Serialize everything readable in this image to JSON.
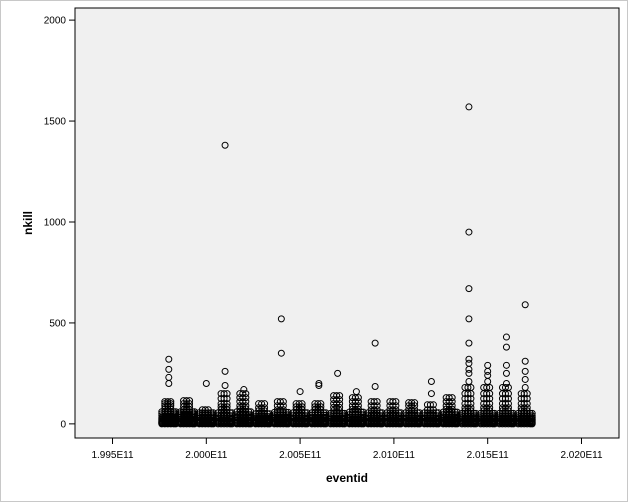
{
  "chart_data": {
    "type": "scatter",
    "title": "",
    "xlabel": "eventid",
    "ylabel": "nkill",
    "xlim": [
      199300000000.0,
      202200000000.0
    ],
    "ylim": [
      -70,
      2060
    ],
    "x_ticks": [
      199500000000.0,
      200000000000.0,
      200500000000.0,
      201000000000.0,
      201500000000.0,
      202000000000.0
    ],
    "x_tick_labels": [
      "1.995E11",
      "2.000E11",
      "2.005E11",
      "2.010E11",
      "2.015E11",
      "2.020E11"
    ],
    "y_ticks": [
      0,
      500,
      1000,
      1500,
      2000
    ],
    "y_tick_labels": [
      "0",
      "500",
      "1000",
      "1500",
      "2000"
    ],
    "grid": false,
    "plot_background": "#f0f0f0",
    "marker": "open-circle",
    "marker_color": "#000000",
    "clusters": [
      {
        "x": 199800000000.0,
        "low_values": [
          0,
          3,
          6,
          10,
          15,
          20,
          25,
          30,
          40,
          50,
          60,
          75,
          90,
          100,
          110
        ],
        "outliers": [
          200,
          230,
          270,
          320
        ]
      },
      {
        "x": 199900000000.0,
        "low_values": [
          0,
          4,
          8,
          12,
          18,
          24,
          32,
          40,
          50,
          60,
          70,
          85,
          100,
          115
        ],
        "outliers": []
      },
      {
        "x": 200000000000.0,
        "low_values": [
          0,
          3,
          6,
          10,
          15,
          20,
          28,
          35,
          45,
          55,
          70
        ],
        "outliers": [
          200
        ]
      },
      {
        "x": 200100000000.0,
        "low_values": [
          0,
          5,
          10,
          15,
          22,
          30,
          40,
          55,
          70,
          85,
          100,
          125,
          150
        ],
        "outliers": [
          190,
          260,
          1380
        ]
      },
      {
        "x": 200200000000.0,
        "low_values": [
          0,
          4,
          8,
          14,
          20,
          28,
          36,
          45,
          60,
          75,
          90,
          110,
          130,
          150
        ],
        "outliers": [
          170
        ]
      },
      {
        "x": 200300000000.0,
        "low_values": [
          0,
          3,
          6,
          10,
          15,
          20,
          28,
          36,
          50,
          65,
          80,
          100
        ],
        "outliers": []
      },
      {
        "x": 200400000000.0,
        "low_values": [
          0,
          4,
          8,
          13,
          19,
          26,
          35,
          45,
          57,
          70,
          90,
          110
        ],
        "outliers": [
          350,
          520
        ]
      },
      {
        "x": 200500000000.0,
        "low_values": [
          0,
          3,
          6,
          10,
          15,
          22,
          30,
          40,
          55,
          70,
          85,
          100
        ],
        "outliers": [
          160
        ]
      },
      {
        "x": 200600000000.0,
        "low_values": [
          0,
          4,
          8,
          12,
          18,
          25,
          33,
          43,
          55,
          70,
          85,
          100
        ],
        "outliers": [
          190,
          200
        ]
      },
      {
        "x": 200700000000.0,
        "low_values": [
          0,
          4,
          9,
          15,
          22,
          30,
          40,
          52,
          66,
          82,
          100,
          120,
          140
        ],
        "outliers": [
          250
        ]
      },
      {
        "x": 200800000000.0,
        "low_values": [
          0,
          3,
          7,
          12,
          18,
          25,
          34,
          45,
          58,
          73,
          90,
          110,
          130
        ],
        "outliers": [
          160
        ]
      },
      {
        "x": 200900000000.0,
        "low_values": [
          0,
          3,
          6,
          10,
          15,
          22,
          30,
          40,
          55,
          70,
          90,
          110
        ],
        "outliers": [
          185,
          400
        ]
      },
      {
        "x": 201000000000.0,
        "low_values": [
          0,
          3,
          6,
          10,
          15,
          22,
          30,
          40,
          55,
          70,
          90,
          110
        ],
        "outliers": []
      },
      {
        "x": 201100000000.0,
        "low_values": [
          0,
          3,
          6,
          10,
          15,
          22,
          30,
          40,
          55,
          70,
          90,
          105
        ],
        "outliers": []
      },
      {
        "x": 201200000000.0,
        "low_values": [
          0,
          3,
          6,
          10,
          15,
          22,
          30,
          40,
          55,
          70,
          95
        ],
        "outliers": [
          150,
          210
        ]
      },
      {
        "x": 201300000000.0,
        "low_values": [
          0,
          4,
          8,
          13,
          19,
          26,
          35,
          45,
          58,
          73,
          90,
          110,
          130
        ],
        "outliers": []
      },
      {
        "x": 201400000000.0,
        "low_values": [
          0,
          5,
          10,
          16,
          23,
          31,
          40,
          52,
          65,
          80,
          100,
          125,
          150,
          180
        ],
        "outliers": [
          210,
          250,
          270,
          300,
          320,
          400,
          520,
          670,
          950,
          1570
        ]
      },
      {
        "x": 201500000000.0,
        "low_values": [
          0,
          5,
          10,
          16,
          23,
          31,
          40,
          52,
          65,
          80,
          100,
          125,
          150,
          180
        ],
        "outliers": [
          210,
          240,
          260,
          290
        ]
      },
      {
        "x": 201600000000.0,
        "low_values": [
          0,
          5,
          10,
          16,
          23,
          31,
          40,
          52,
          65,
          80,
          100,
          125,
          150,
          180
        ],
        "outliers": [
          200,
          250,
          290,
          380,
          430
        ]
      },
      {
        "x": 201700000000.0,
        "low_values": [
          0,
          5,
          10,
          16,
          23,
          31,
          40,
          52,
          65,
          80,
          100,
          125,
          150
        ],
        "outliers": [
          180,
          220,
          260,
          310,
          590
        ]
      }
    ]
  }
}
